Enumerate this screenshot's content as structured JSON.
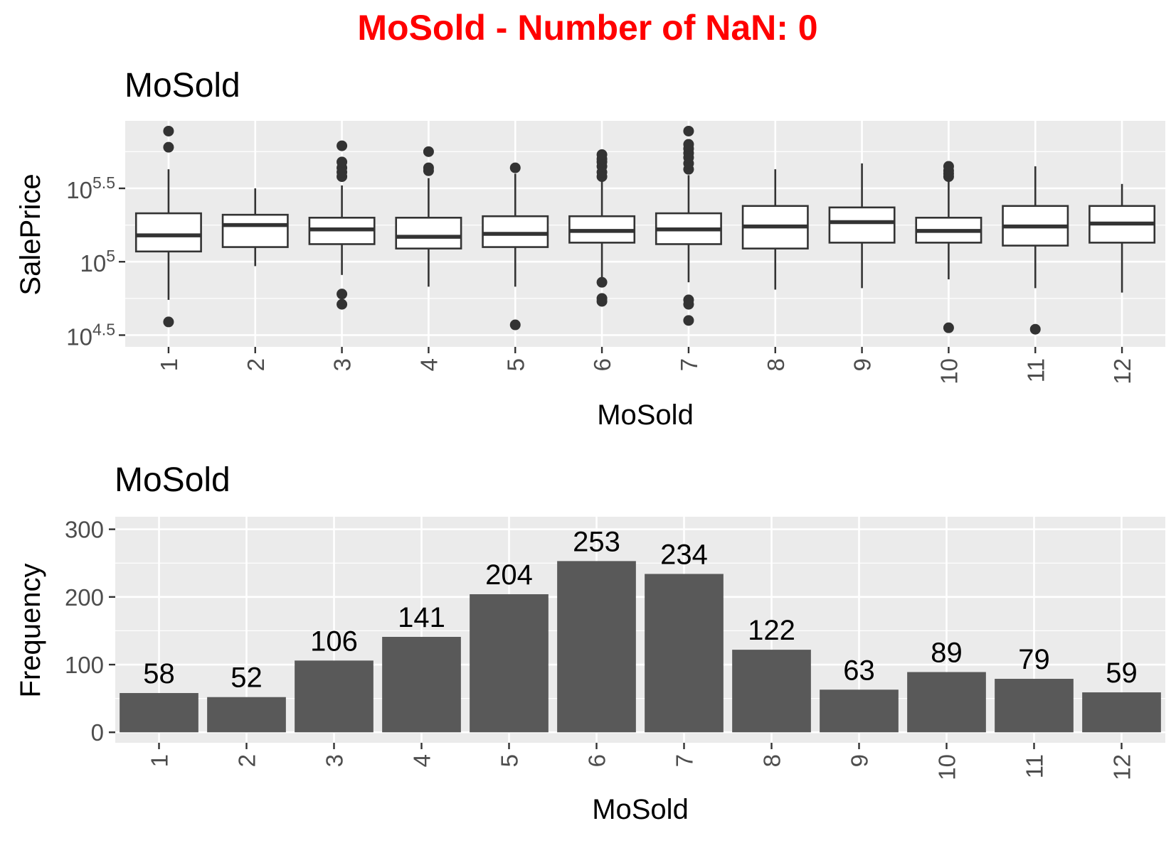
{
  "figure": {
    "title": "MoSold - Number of NaN: 0",
    "title_color": "#ff0000"
  },
  "chart_data": [
    {
      "type": "boxplot",
      "title": "MoSold",
      "xlabel": "MoSold",
      "ylabel": "SalePrice",
      "y_scale": "log10",
      "y_tick_base": "10",
      "y_tick_exponents": [
        "4.5",
        "5",
        "5.5"
      ],
      "ylim_log10": [
        4.42,
        5.96
      ],
      "categories": [
        "1",
        "2",
        "3",
        "4",
        "5",
        "6",
        "7",
        "8",
        "9",
        "10",
        "11",
        "12"
      ],
      "boxes_log10": [
        {
          "lower_whisker": 4.74,
          "q1": 5.07,
          "median": 5.18,
          "q3": 5.33,
          "upper_whisker": 5.63,
          "outliers": [
            4.59,
            5.78,
            5.89
          ]
        },
        {
          "lower_whisker": 4.97,
          "q1": 5.1,
          "median": 5.25,
          "q3": 5.32,
          "upper_whisker": 5.5,
          "outliers": []
        },
        {
          "lower_whisker": 4.91,
          "q1": 5.12,
          "median": 5.22,
          "q3": 5.3,
          "upper_whisker": 5.52,
          "outliers": [
            4.71,
            4.78,
            5.58,
            5.61,
            5.64,
            5.68,
            5.79
          ]
        },
        {
          "lower_whisker": 4.83,
          "q1": 5.09,
          "median": 5.17,
          "q3": 5.3,
          "upper_whisker": 5.57,
          "outliers": [
            5.62,
            5.64,
            5.75
          ]
        },
        {
          "lower_whisker": 4.83,
          "q1": 5.1,
          "median": 5.19,
          "q3": 5.31,
          "upper_whisker": 5.6,
          "outliers": [
            4.57,
            5.64
          ]
        },
        {
          "lower_whisker": 4.85,
          "q1": 5.13,
          "median": 5.21,
          "q3": 5.31,
          "upper_whisker": 5.56,
          "outliers": [
            4.73,
            4.75,
            4.86,
            5.58,
            5.61,
            5.65,
            5.68,
            5.7,
            5.73
          ]
        },
        {
          "lower_whisker": 4.86,
          "q1": 5.12,
          "median": 5.22,
          "q3": 5.33,
          "upper_whisker": 5.59,
          "outliers": [
            4.6,
            4.71,
            4.74,
            5.63,
            5.67,
            5.71,
            5.74,
            5.77,
            5.8,
            5.89
          ]
        },
        {
          "lower_whisker": 4.81,
          "q1": 5.09,
          "median": 5.24,
          "q3": 5.38,
          "upper_whisker": 5.63,
          "outliers": []
        },
        {
          "lower_whisker": 4.82,
          "q1": 5.13,
          "median": 5.27,
          "q3": 5.37,
          "upper_whisker": 5.67,
          "outliers": []
        },
        {
          "lower_whisker": 4.88,
          "q1": 5.13,
          "median": 5.21,
          "q3": 5.3,
          "upper_whisker": 5.56,
          "outliers": [
            4.55,
            5.58,
            5.6,
            5.62,
            5.65
          ]
        },
        {
          "lower_whisker": 4.82,
          "q1": 5.11,
          "median": 5.24,
          "q3": 5.38,
          "upper_whisker": 5.65,
          "outliers": [
            4.54
          ]
        },
        {
          "lower_whisker": 4.79,
          "q1": 5.13,
          "median": 5.26,
          "q3": 5.38,
          "upper_whisker": 5.53,
          "outliers": []
        }
      ]
    },
    {
      "type": "bar",
      "title": "MoSold",
      "xlabel": "MoSold",
      "ylabel": "Frequency",
      "categories": [
        "1",
        "2",
        "3",
        "4",
        "5",
        "6",
        "7",
        "8",
        "9",
        "10",
        "11",
        "12"
      ],
      "values": [
        58,
        52,
        106,
        141,
        204,
        253,
        234,
        122,
        63,
        89,
        79,
        59
      ],
      "ylim": [
        -15.5,
        318.5
      ],
      "yticks": [
        0,
        100,
        200,
        300
      ],
      "bar_color": "#595959",
      "panel_color": "#ebebeb",
      "grid": true
    }
  ]
}
